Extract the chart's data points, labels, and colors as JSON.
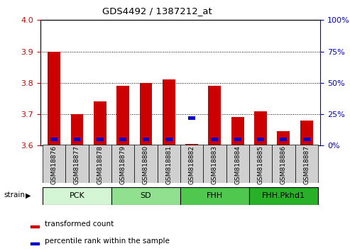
{
  "title": "GDS4492 / 1387212_at",
  "samples": [
    "GSM818876",
    "GSM818877",
    "GSM818878",
    "GSM818879",
    "GSM818880",
    "GSM818881",
    "GSM818882",
    "GSM818883",
    "GSM818884",
    "GSM818885",
    "GSM818886",
    "GSM818887"
  ],
  "red_values": [
    3.9,
    3.7,
    3.74,
    3.79,
    3.8,
    3.81,
    3.605,
    3.79,
    3.69,
    3.71,
    3.645,
    3.68
  ],
  "blue_percentile": [
    5,
    5,
    5,
    5,
    5,
    5,
    22,
    5,
    5,
    5,
    5,
    5
  ],
  "ymin": 3.6,
  "ymax": 4.0,
  "yticks": [
    3.6,
    3.7,
    3.8,
    3.9,
    4.0
  ],
  "right_yticks": [
    0,
    25,
    50,
    75,
    100
  ],
  "groups": [
    {
      "label": "PCK",
      "start": 0,
      "end": 2,
      "color": "#d4f5d4"
    },
    {
      "label": "SD",
      "start": 3,
      "end": 5,
      "color": "#90e090"
    },
    {
      "label": "FHH",
      "start": 6,
      "end": 8,
      "color": "#50c850"
    },
    {
      "label": "FHH.Pkhd1",
      "start": 9,
      "end": 11,
      "color": "#28b028"
    }
  ],
  "bar_color_red": "#cc0000",
  "bar_color_blue": "#0000cc",
  "bar_width": 0.55,
  "tick_label_color_left": "#cc0000",
  "tick_label_color_right": "#0000cc",
  "legend_red": "transformed count",
  "legend_blue": "percentile rank within the sample",
  "xtick_bg": "#d0d0d0"
}
